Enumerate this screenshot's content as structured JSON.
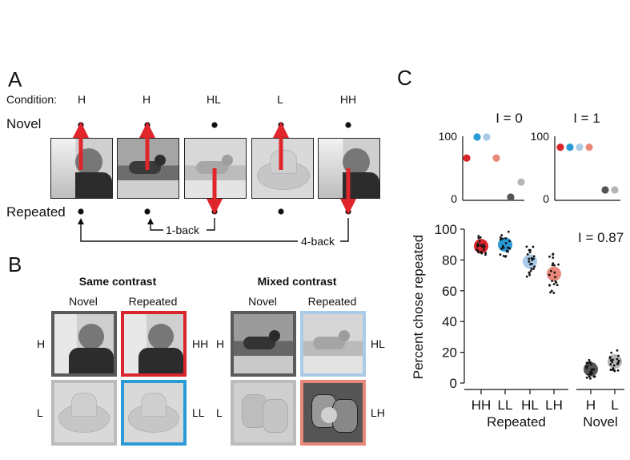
{
  "panelA": {
    "letter": "A",
    "condition_title": "Condition:",
    "conditions": [
      "H",
      "H",
      "HL",
      "L",
      "HH"
    ],
    "novel_label": "Novel",
    "repeated_label": "Repeated",
    "one_back": "1-back",
    "four_back": "4-back",
    "arrow_color": "#e0252b"
  },
  "panelB": {
    "letter": "B",
    "same_title": "Same contrast",
    "mixed_title": "Mixed contrast",
    "novel": "Novel",
    "repeated": "Repeated",
    "left_rows": [
      "H",
      "L"
    ],
    "same_right": [
      "HH",
      "LL"
    ],
    "mixed_left": [
      "H",
      "L"
    ],
    "mixed_right": [
      "HL",
      "LH"
    ],
    "colors": {
      "HH": "#d9262c",
      "LL": "#2a9bd6",
      "HL": "#a9cbe8",
      "LH": "#e8887a",
      "dark": "#5a5a5a",
      "light": "#bbbbbb"
    }
  },
  "chart_data": [
    {
      "type": "scatter",
      "title": "I = 0",
      "yticks": [
        0,
        100
      ],
      "ylim": [
        0,
        100
      ],
      "points": [
        {
          "name": "HH",
          "value": 65,
          "color": "#d9262c"
        },
        {
          "name": "LL",
          "value": 100,
          "color": "#2a9bd6"
        },
        {
          "name": "HL",
          "value": 100,
          "color": "#a9cbe8"
        },
        {
          "name": "LH",
          "value": 65,
          "color": "#e8887a"
        },
        {
          "name": "H",
          "value": 0,
          "color": "#555555"
        },
        {
          "name": "L",
          "value": 25,
          "color": "#b5b5b5"
        }
      ]
    },
    {
      "type": "scatter",
      "title": "I = 1",
      "yticks": [
        0,
        100
      ],
      "ylim": [
        0,
        100
      ],
      "points": [
        {
          "name": "HH",
          "value": 83,
          "color": "#d9262c"
        },
        {
          "name": "LL",
          "value": 83,
          "color": "#2a9bd6"
        },
        {
          "name": "HL",
          "value": 83,
          "color": "#a9cbe8"
        },
        {
          "name": "LH",
          "value": 83,
          "color": "#e8887a"
        },
        {
          "name": "H",
          "value": 12,
          "color": "#555555"
        },
        {
          "name": "L",
          "value": 12,
          "color": "#b5b5b5"
        }
      ]
    },
    {
      "type": "scatter",
      "annotation": "I = 0.87",
      "ylabel": "Percent chose repeated",
      "ylim": [
        0,
        100
      ],
      "yticks": [
        0,
        20,
        40,
        60,
        80,
        100
      ],
      "categories": [
        "HH",
        "LL",
        "HL",
        "LH",
        "H",
        "L"
      ],
      "group_labels": [
        "Repeated",
        "Novel"
      ],
      "means": [
        89,
        90,
        79,
        71,
        9,
        14
      ],
      "colors": [
        "#d9262c",
        "#2a9bd6",
        "#a9cbe8",
        "#e8887a",
        "#555555",
        "#b5b5b5"
      ]
    }
  ]
}
